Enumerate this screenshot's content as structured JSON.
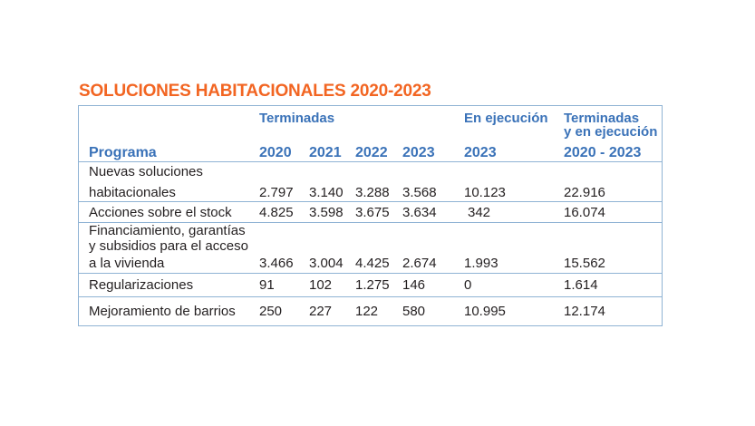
{
  "title": "SOLUCIONES HABITACIONALES 2020-2023",
  "header": {
    "terminadas": "Terminadas",
    "en_ejecucion": "En ejecución",
    "terminadas_ejec_1": "Terminadas",
    "terminadas_ejec_2": "y en ejecución",
    "programa": "Programa",
    "y2020": "2020",
    "y2021": "2021",
    "y2022": "2022",
    "y2023": "2023",
    "ejec_2023": "2023",
    "total_range": "2020 - 2023"
  },
  "rows": [
    {
      "label": [
        "Nuevas soluciones",
        "habitacionales"
      ],
      "v2020": "2.797",
      "v2021": "3.140",
      "v2022": "3.288",
      "v2023": "3.568",
      "ejec": "10.123",
      "total": "22.916"
    },
    {
      "label": [
        "Acciones sobre el stock"
      ],
      "v2020": "4.825",
      "v2021": "3.598",
      "v2022": "3.675",
      "v2023": "3.634",
      "ejec": "342",
      "total": "16.074"
    },
    {
      "label": [
        "Financiamiento, garantías",
        "y subsidios para el acceso",
        "a la vivienda"
      ],
      "v2020": "3.466",
      "v2021": "3.004",
      "v2022": "4.425",
      "v2023": "2.674",
      "ejec": "1.993",
      "total": "15.562"
    },
    {
      "label": [
        "Regularizaciones"
      ],
      "v2020": "91",
      "v2021": "102",
      "v2022": "1.275",
      "v2023": "146",
      "ejec": "0",
      "total": "1.614"
    },
    {
      "label": [
        "Mejoramiento de barrios"
      ],
      "v2020": "250",
      "v2021": "227",
      "v2022": "122",
      "v2023": "580",
      "ejec": "10.995",
      "total": "12.174"
    }
  ],
  "colors": {
    "title": "#f26522",
    "header": "#3a72b8",
    "rule": "#8fb3d4",
    "text": "#231f20"
  }
}
